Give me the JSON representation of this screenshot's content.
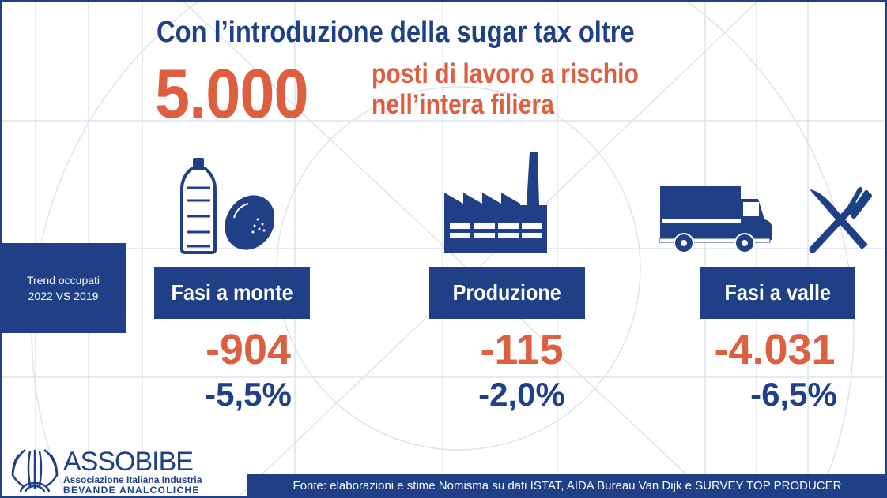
{
  "headline": {
    "line1": "Con l’introduzione della sugar tax oltre",
    "big_number": "5.000",
    "sub1": "posti di lavoro a rischio",
    "sub2": "nell’intera filiera"
  },
  "trend": {
    "line1": "Trend occupati",
    "line2": "2022 VS 2019"
  },
  "sections": [
    {
      "label": "Fasi a monte",
      "value": "-904",
      "percent": "-5,5%",
      "icons": [
        "bottle-icon",
        "lemon-icon"
      ]
    },
    {
      "label": "Produzione",
      "value": "-115",
      "percent": "-2,0%",
      "icons": [
        "factory-icon"
      ]
    },
    {
      "label": "Fasi a valle",
      "value": "-4.031",
      "percent": "-6,5%",
      "icons": [
        "truck-icon",
        "knife-fork-icon"
      ]
    }
  ],
  "footer": {
    "source": "Fonte: elaborazioni e stime Nomisma su dati ISTAT, AIDA Bureau Van Dijk e SURVEY TOP PRODUCER"
  },
  "logo": {
    "name": "ASSOBIBE",
    "line1": "Associazione Italiana Industria",
    "line2": "BEVANDE ANALCOLICHE"
  },
  "colors": {
    "blue": "#1f3f87",
    "orange": "#de5f40",
    "grid": "#dde3ee"
  }
}
